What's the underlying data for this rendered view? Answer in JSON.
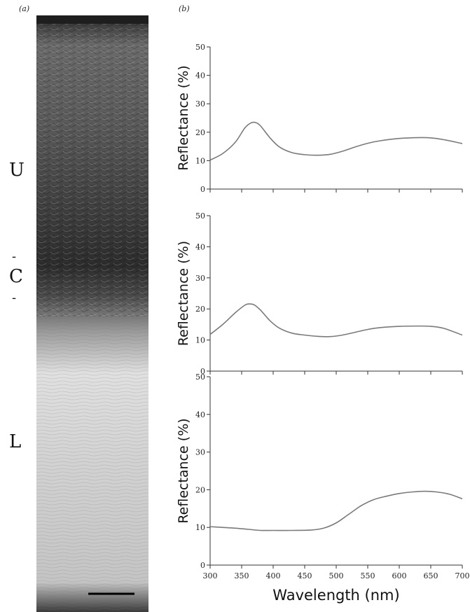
{
  "panel_a_label": "(a)",
  "panel_b_label": "(b)",
  "layer_labels": {
    "upper": "U",
    "central": "C",
    "lower": "L"
  },
  "colors": {
    "curve": "#7a7a7a",
    "axis": "#333333"
  },
  "chart_data": [
    {
      "type": "line",
      "ylabel": "Reflectance (%)",
      "xlabel": "",
      "xlim": [
        300,
        700
      ],
      "ylim": [
        0,
        50
      ],
      "xticks": [
        300,
        350,
        400,
        450,
        500,
        550,
        600,
        650,
        700
      ],
      "yticks": [
        0,
        10,
        20,
        30,
        40,
        50
      ],
      "series": [
        {
          "x": [
            300,
            320,
            340,
            355,
            365,
            372,
            380,
            395,
            410,
            430,
            450,
            470,
            490,
            510,
            530,
            550,
            570,
            600,
            630,
            650,
            670,
            700
          ],
          "values": [
            10.2,
            12.5,
            16.5,
            21.5,
            23.3,
            23.4,
            22.2,
            18.0,
            14.8,
            12.8,
            12.1,
            11.9,
            12.2,
            13.3,
            14.8,
            16.1,
            17.0,
            17.8,
            18.1,
            18.0,
            17.4,
            16.0
          ]
        }
      ]
    },
    {
      "type": "line",
      "ylabel": "Reflectance (%)",
      "xlabel": "",
      "xlim": [
        300,
        700
      ],
      "ylim": [
        0,
        50
      ],
      "xticks": [
        300,
        350,
        400,
        450,
        500,
        550,
        600,
        650,
        700
      ],
      "yticks": [
        0,
        10,
        20,
        30,
        40,
        50
      ],
      "series": [
        {
          "x": [
            300,
            320,
            340,
            355,
            362,
            370,
            380,
            395,
            410,
            430,
            450,
            470,
            490,
            510,
            530,
            550,
            570,
            600,
            630,
            650,
            670,
            700
          ],
          "values": [
            11.8,
            15.0,
            18.8,
            21.2,
            21.6,
            21.3,
            19.6,
            16.2,
            13.8,
            12.2,
            11.6,
            11.2,
            11.1,
            11.6,
            12.5,
            13.4,
            14.0,
            14.4,
            14.5,
            14.4,
            13.8,
            11.6
          ]
        }
      ]
    },
    {
      "type": "line",
      "ylabel": "Reflectance (%)",
      "xlabel": "Wavelength (nm)",
      "xlim": [
        300,
        700
      ],
      "ylim": [
        0,
        50
      ],
      "xticks": [
        300,
        350,
        400,
        450,
        500,
        550,
        600,
        650,
        700
      ],
      "yticks": [
        0,
        10,
        20,
        30,
        40,
        50
      ],
      "series": [
        {
          "x": [
            300,
            320,
            340,
            360,
            380,
            400,
            430,
            460,
            480,
            500,
            520,
            540,
            560,
            580,
            600,
            620,
            640,
            660,
            680,
            700
          ],
          "values": [
            10.2,
            10.0,
            9.8,
            9.5,
            9.2,
            9.2,
            9.2,
            9.3,
            9.8,
            11.2,
            13.5,
            15.8,
            17.4,
            18.3,
            19.0,
            19.4,
            19.6,
            19.4,
            18.8,
            17.6
          ]
        }
      ]
    }
  ]
}
